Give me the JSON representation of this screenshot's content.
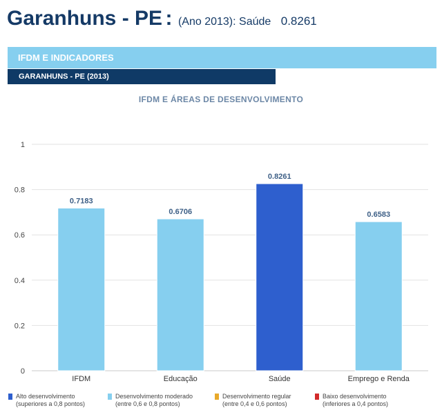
{
  "header": {
    "city": "Garanhuns - PE",
    "separator": ":",
    "year_label": "(Ano 2013):",
    "area_label": "Saúde",
    "score": "0.8261"
  },
  "band": {
    "label": "IFDM E INDICADORES"
  },
  "subband": {
    "label": "GARANHUNS - PE (2013)"
  },
  "chart_data": {
    "type": "bar",
    "title": "IFDM E ÁREAS DE DESENVOLVIMENTO",
    "categories": [
      "IFDM",
      "Educação",
      "Saúde",
      "Emprego e Renda"
    ],
    "values": [
      0.7183,
      0.6706,
      0.8261,
      0.6583
    ],
    "value_labels": [
      "0.7183",
      "0.6706",
      "0.8261",
      "0.6583"
    ],
    "bar_colors": [
      "#86cfef",
      "#86cfef",
      "#2e5fce",
      "#86cfef"
    ],
    "ylim": [
      0,
      1
    ],
    "yticks": [
      0,
      0.2,
      0.4,
      0.6,
      0.8,
      1
    ],
    "ytick_labels": [
      "0",
      "0.2",
      "0.4",
      "0.6",
      "0.8",
      "1"
    ],
    "grid": true,
    "xlabel": "",
    "ylabel": ""
  },
  "legend": [
    {
      "line1": "Alto desenvolvimento",
      "line2": "(superiores a 0,8 pontos)",
      "color": "#2e5fce"
    },
    {
      "line1": "Desenvolvimento moderado",
      "line2": "(entre 0,6 e 0,8 pontos)",
      "color": "#86cfef"
    },
    {
      "line1": "Desenvolvimento regular",
      "line2": "(entre 0,4 e 0,6 pontos)",
      "color": "#e8a92a"
    },
    {
      "line1": "Baixo desenvolvimento",
      "line2": "(inferiores a 0,4 pontos)",
      "color": "#d22a2a"
    }
  ]
}
